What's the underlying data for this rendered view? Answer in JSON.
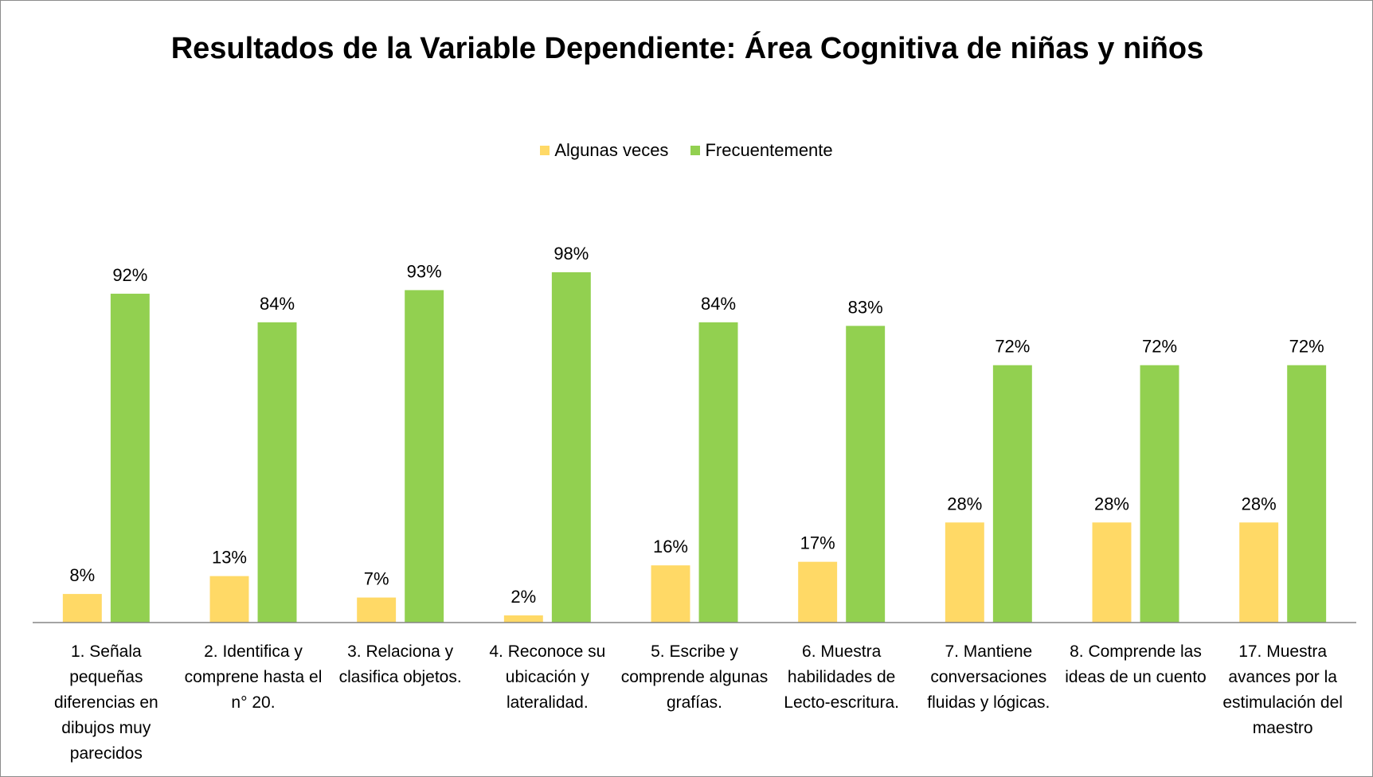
{
  "chart_data": {
    "type": "bar",
    "title": "Resultados de la Variable Dependiente: Área Cognitiva de niñas y niños",
    "categories": [
      "1. Señala pequeñas diferencias en dibujos muy parecidos",
      "2. Identifica y comprene hasta el n° 20.",
      "3. Relaciona  y clasifica objetos.",
      "4. Reconoce su ubicación y lateralidad.",
      "5. Escribe y comprende algunas grafías.",
      "6.  Muestra habilidades de Lecto-escritura.",
      "7. Mantiene conversaciones fluidas y lógicas.",
      "8. Comprende las ideas de un cuento",
      "17. Muestra avances por la estimulación del maestro"
    ],
    "series": [
      {
        "name": "Algunas veces",
        "color": "#ffd966",
        "values": [
          8,
          13,
          7,
          2,
          16,
          17,
          28,
          28,
          28
        ],
        "value_labels": [
          "8%",
          "13%",
          "7%",
          "2%",
          "16%",
          "17%",
          "28%",
          "28%",
          "28%"
        ]
      },
      {
        "name": "Frecuentemente",
        "color": "#92d050",
        "values": [
          92,
          84,
          93,
          98,
          84,
          83,
          72,
          72,
          72
        ],
        "value_labels": [
          "92%",
          "84%",
          "93%",
          "98%",
          "84%",
          "83%",
          "72%",
          "72%",
          "72%"
        ]
      }
    ],
    "ylim": [
      0,
      100
    ],
    "legend": "top"
  }
}
